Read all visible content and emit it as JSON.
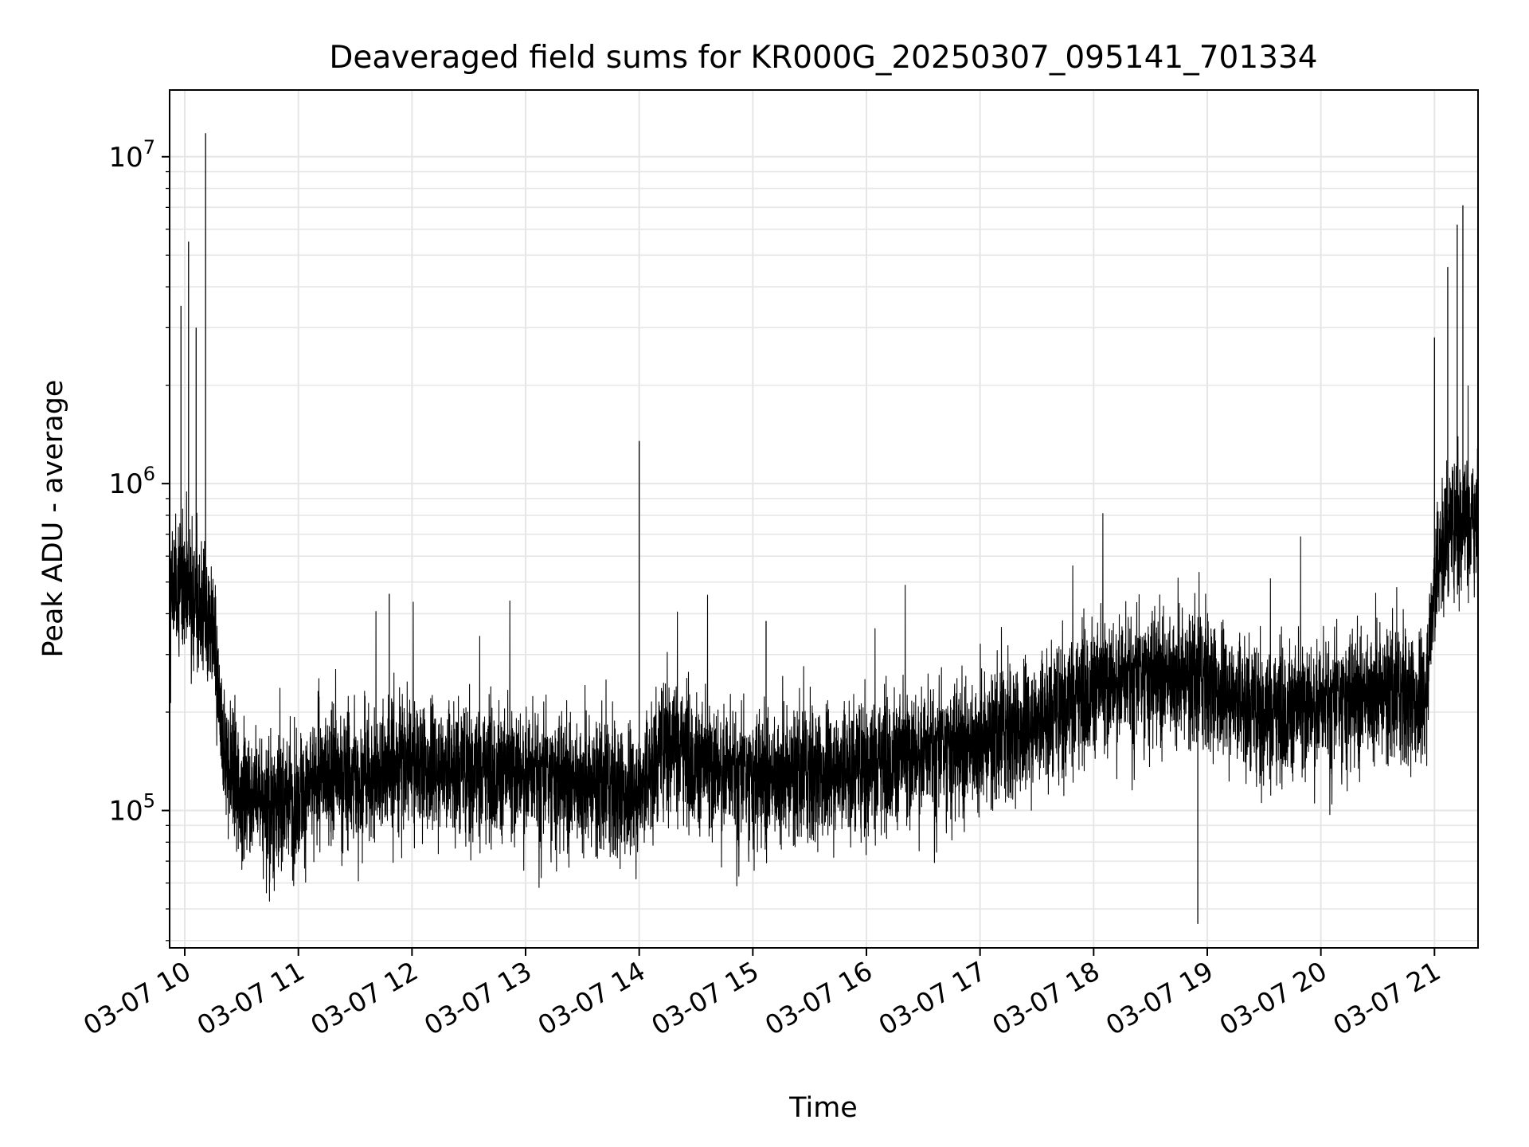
{
  "chart_data": {
    "type": "line",
    "title": "Deaveraged field sums for KR000G_20250307_095141_701334",
    "xlabel": "Time",
    "ylabel": "Peak ADU - average",
    "yscale": "log",
    "ylim": [
      38000,
      16000000
    ],
    "xlim": [
      "03-07 09:52",
      "03-07 21:23"
    ],
    "grid": true,
    "x_ticks": [
      "03-07 10",
      "03-07 11",
      "03-07 12",
      "03-07 13",
      "03-07 14",
      "03-07 15",
      "03-07 16",
      "03-07 17",
      "03-07 18",
      "03-07 19",
      "03-07 20",
      "03-07 21"
    ],
    "y_ticks": [
      {
        "value": 100000,
        "base": "10",
        "exp": "5"
      },
      {
        "value": 1000000,
        "base": "10",
        "exp": "6"
      },
      {
        "value": 10000000,
        "base": "10",
        "exp": "7"
      }
    ],
    "series": [
      {
        "color": "#000000",
        "x": [
          "03-07 09:52",
          "03-07 10:00",
          "03-07 10:05",
          "03-07 10:10",
          "03-07 10:15",
          "03-07 10:20",
          "03-07 10:30",
          "03-07 10:45",
          "03-07 11:00",
          "03-07 11:15",
          "03-07 11:30",
          "03-07 11:45",
          "03-07 12:00",
          "03-07 12:30",
          "03-07 13:00",
          "03-07 13:30",
          "03-07 14:00",
          "03-07 14:15",
          "03-07 14:30",
          "03-07 15:00",
          "03-07 15:30",
          "03-07 16:00",
          "03-07 16:30",
          "03-07 17:00",
          "03-07 17:30",
          "03-07 18:00",
          "03-07 18:30",
          "03-07 19:00",
          "03-07 19:30",
          "03-07 20:00",
          "03-07 20:30",
          "03-07 20:55",
          "03-07 21:00",
          "03-07 21:05",
          "03-07 21:15",
          "03-07 21:23"
        ],
        "y": [
          450000,
          520000,
          450000,
          400000,
          350000,
          150000,
          115000,
          105000,
          110000,
          130000,
          125000,
          135000,
          140000,
          135000,
          130000,
          120000,
          115000,
          170000,
          140000,
          125000,
          130000,
          140000,
          150000,
          160000,
          190000,
          240000,
          260000,
          250000,
          200000,
          210000,
          230000,
          220000,
          500000,
          700000,
          800000,
          750000
        ],
        "spikes": [
          {
            "x": "03-07 09:58",
            "y": 3500000
          },
          {
            "x": "03-07 10:02",
            "y": 5500000
          },
          {
            "x": "03-07 10:06",
            "y": 3000000
          },
          {
            "x": "03-07 10:11",
            "y": 11800000
          },
          {
            "x": "03-07 11:48",
            "y": 460000
          },
          {
            "x": "03-07 14:00",
            "y": 1350000
          },
          {
            "x": "03-07 15:07",
            "y": 380000
          },
          {
            "x": "03-07 18:55",
            "y": 45000
          },
          {
            "x": "03-07 21:00",
            "y": 2800000
          },
          {
            "x": "03-07 21:07",
            "y": 4600000
          },
          {
            "x": "03-07 21:12",
            "y": 6200000
          },
          {
            "x": "03-07 21:15",
            "y": 7100000
          }
        ]
      }
    ]
  }
}
